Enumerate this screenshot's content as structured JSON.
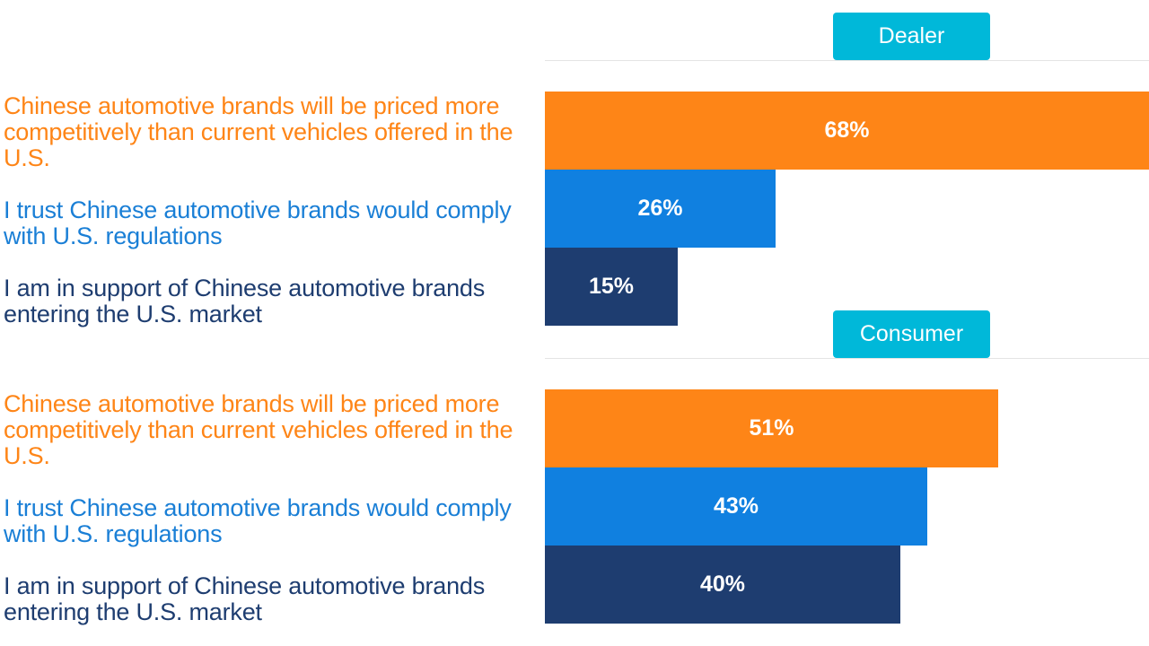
{
  "chart_data": [
    {
      "type": "bar",
      "orientation": "horizontal",
      "title": "Dealer",
      "categories": [
        "Chinese automotive brands will be priced more competitively than current vehicles offered in the U.S.",
        "I trust Chinese automotive brands would comply with U.S. regulations",
        "I am in support of Chinese automotive brands entering the U.S. market"
      ],
      "values": [
        68,
        26,
        15
      ],
      "value_labels": [
        "68%",
        "26%",
        "15%"
      ],
      "xlim": [
        0,
        68
      ],
      "grid": false,
      "legend": "none"
    },
    {
      "type": "bar",
      "orientation": "horizontal",
      "title": "Consumer",
      "categories": [
        "Chinese automotive brands will be priced more competitively than current vehicles offered in the U.S.",
        "I trust Chinese automotive brands would comply with U.S. regulations",
        "I am in support of Chinese automotive brands entering the U.S. market"
      ],
      "values": [
        51,
        43,
        40
      ],
      "value_labels": [
        "51%",
        "43%",
        "40%"
      ],
      "xlim": [
        0,
        68
      ],
      "grid": false,
      "legend": "none"
    }
  ],
  "colors": {
    "badge": "#00b8d9",
    "bars": [
      "#fe8517",
      "#1080e0",
      "#1e3d70"
    ],
    "labels": [
      "#fe8517",
      "#1a7fd6",
      "#1e3d70"
    ]
  }
}
